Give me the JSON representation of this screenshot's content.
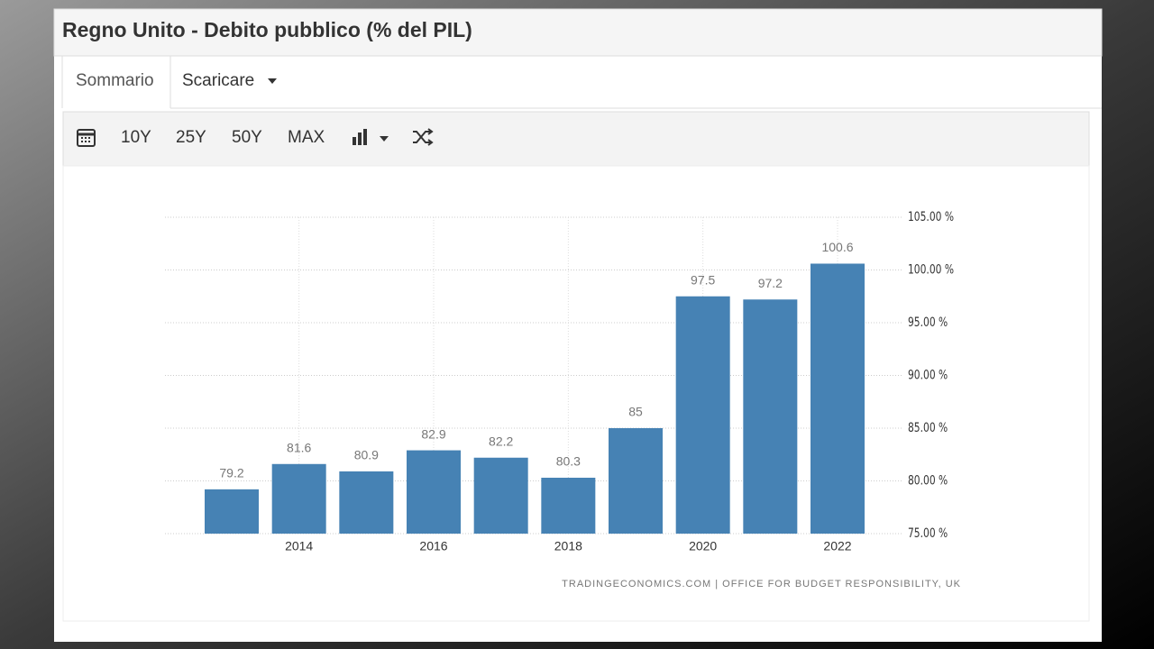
{
  "header": {
    "title": "Regno Unito - Debito pubblico (% del PIL)"
  },
  "tabs": [
    "Sommario",
    "Scaricare"
  ],
  "toolbar": [
    "10Y",
    "25Y",
    "50Y",
    "MAX"
  ],
  "chart_data": {
    "type": "bar",
    "categories": [
      null,
      "2014",
      null,
      "2016",
      null,
      "2018",
      null,
      "2020",
      null,
      "2022"
    ],
    "values": [
      79.2,
      81.6,
      80.9,
      82.9,
      82.2,
      80.3,
      85,
      97.5,
      97.2,
      100.6
    ],
    "color": "#4682b4",
    "ylim": [
      75,
      105
    ],
    "yticks": [
      {
        "value": 75,
        "label": "75.00 %"
      },
      {
        "value": 80,
        "label": "80.00 %"
      },
      {
        "value": 85,
        "label": "85.00 %"
      },
      {
        "value": 90,
        "label": "90.00 %"
      },
      {
        "value": 95,
        "label": "95.00 %"
      },
      {
        "value": 100,
        "label": "100.00 %"
      },
      {
        "value": 105,
        "label": "105.00 %"
      }
    ],
    "grid": true,
    "source": "TRADINGECONOMICS.COM | OFFICE FOR BUDGET RESPONSIBILITY, UK"
  }
}
